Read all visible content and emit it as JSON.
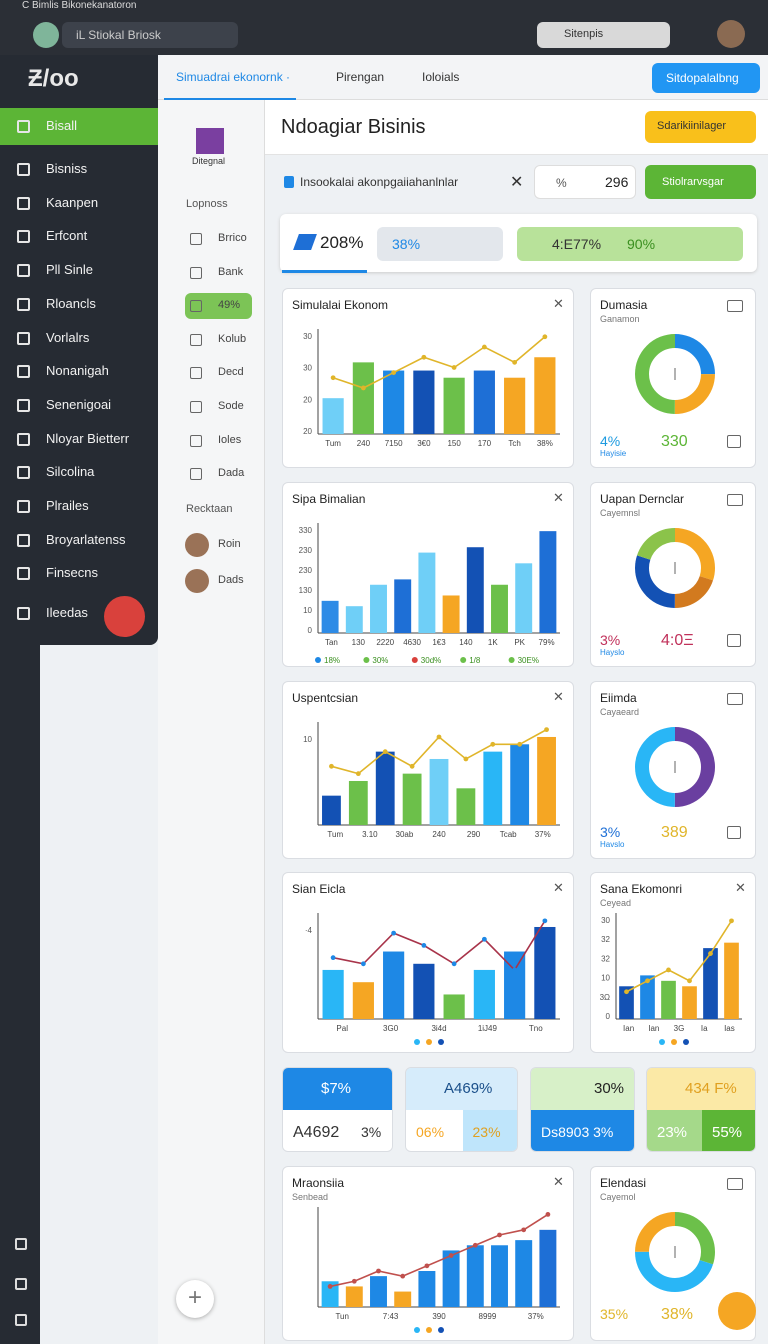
{
  "browser": {
    "tab": "C Bimlis Bikonekanatoron",
    "address": "iL Stiokal Briosk",
    "search": "Sitenpis"
  },
  "logo": "Ƶ/oo",
  "menu": [
    "Bisall",
    "Bisniss",
    "Kaanpen",
    "Erfcont",
    "Pll Sinle",
    "Rloancls",
    "Vorlalrs",
    "Nonanigah",
    "Senenigoai",
    "Nloyar Bietterr",
    "Silcolina",
    "Plrailes",
    "Broyarlatenss",
    "Finsecns",
    "Ileedas"
  ],
  "subnav": {
    "brand": "Ditegnal",
    "section": "Lopnoss",
    "items": [
      "Brrico",
      "Bank",
      "49%",
      "Kolub",
      "Decd",
      "Sode",
      "Ioles",
      "Dada"
    ],
    "section2": "Recktaan",
    "people": [
      "Roin",
      "Dads"
    ]
  },
  "tabs": [
    "Simuadrai ekonornk ·",
    "Pirengan",
    "Ioloials"
  ],
  "top_button": "Sitdopalalbng",
  "header": {
    "title": "Ndoagiar Bisinis",
    "button": "Sdarikiinilager"
  },
  "filter": {
    "text": "Insookalai akonpgaiiahanlnlar",
    "unit": "%",
    "value": "296",
    "button": "Stiolrarvsgar"
  },
  "stats": [
    "208%",
    "38%",
    "4:E77%",
    "90%"
  ],
  "charts": [
    {
      "title": "Simulalai Ekonom",
      "yticks": [
        "30",
        "30",
        "20",
        "20"
      ],
      "xlabels": [
        "Tum",
        "240",
        "7150",
        "3€0",
        "150",
        "170",
        "Tch",
        "38%"
      ],
      "bars": [
        {
          "value": 35,
          "color": "#6fcff7"
        },
        {
          "value": 70,
          "color": "#6cc04a"
        },
        {
          "value": 62,
          "color": "#1e88e5"
        },
        {
          "value": 62,
          "color": "#1351b4"
        },
        {
          "value": 55,
          "color": "#6cc04a"
        },
        {
          "value": 62,
          "color": "#1e6fd6"
        },
        {
          "value": 55,
          "color": "#f5a623"
        },
        {
          "value": 75,
          "color": "#f5a623"
        }
      ],
      "line": [
        55,
        45,
        60,
        75,
        65,
        85,
        70,
        95
      ],
      "line_color": "#e0b52a"
    },
    {
      "title": "Sipa Bimalian",
      "yticks": [
        "330",
        "230",
        "230",
        "130",
        "10",
        "0"
      ],
      "xlabels": [
        "Tan",
        "130",
        "2220",
        "4630",
        "1€3",
        "140",
        "1K",
        "PK",
        "79%"
      ],
      "bars": [
        {
          "value": 30,
          "color": "#2e8be6"
        },
        {
          "value": 25,
          "color": "#6fcff7"
        },
        {
          "value": 45,
          "color": "#6fcff7"
        },
        {
          "value": 50,
          "color": "#1e6fd6"
        },
        {
          "value": 75,
          "color": "#6fcff7"
        },
        {
          "value": 35,
          "color": "#f5a623"
        },
        {
          "value": 80,
          "color": "#1351b4"
        },
        {
          "value": 45,
          "color": "#6cc04a"
        },
        {
          "value": 65,
          "color": "#6fcff7"
        },
        {
          "value": 95,
          "color": "#1e6fd6"
        }
      ],
      "legend": [
        "18%",
        "30%",
        "30d%",
        "1/8",
        "30E%"
      ]
    },
    {
      "title": "Uspentcsian",
      "yticks": [
        "10"
      ],
      "xlabels": [
        "Tum",
        "3.10",
        "30ab",
        "240",
        "290",
        "Tcab",
        "37%"
      ],
      "bars": [
        {
          "value": 20,
          "color": "#1351b4"
        },
        {
          "value": 30,
          "color": "#6cc04a"
        },
        {
          "value": 50,
          "color": "#1351b4"
        },
        {
          "value": 35,
          "color": "#6cc04a"
        },
        {
          "value": 45,
          "color": "#6fcff7"
        },
        {
          "value": 25,
          "color": "#6cc04a"
        },
        {
          "value": 50,
          "color": "#29b6f6"
        },
        {
          "value": 55,
          "color": "#1e88e5"
        },
        {
          "value": 60,
          "color": "#f5a623"
        }
      ],
      "line": [
        40,
        35,
        50,
        40,
        60,
        45,
        55,
        55,
        65
      ],
      "line_color": "#e0b52a"
    },
    {
      "title": "Sian Eicla",
      "yticks": [
        "·4"
      ],
      "xlabels": [
        "Pal",
        "3G0",
        "3i4d",
        "1iJ49",
        "Tno"
      ],
      "bars": [
        {
          "value": 40,
          "color": "#29b6f6"
        },
        {
          "value": 30,
          "color": "#f5a623"
        },
        {
          "value": 55,
          "color": "#1e88e5"
        },
        {
          "value": 45,
          "color": "#1351b4"
        },
        {
          "value": 20,
          "color": "#6cc04a"
        },
        {
          "value": 40,
          "color": "#29b6f6"
        },
        {
          "value": 55,
          "color": "#1e88e5"
        },
        {
          "value": 75,
          "color": "#1351b4"
        }
      ],
      "line": [
        50,
        45,
        70,
        60,
        45,
        65,
        40,
        80
      ],
      "line_color": "#a8344a"
    },
    {
      "title": "Sana Ekomonri",
      "subtitle": "Ceyead",
      "yticks": [
        "30",
        "32",
        "32",
        "10",
        "3Ω",
        "0"
      ],
      "xlabels": [
        "Ian",
        "Ian",
        "3G",
        "Ia",
        "Ias"
      ],
      "bars": [
        {
          "value": 30,
          "color": "#1351b4"
        },
        {
          "value": 40,
          "color": "#1e88e5"
        },
        {
          "value": 35,
          "color": "#6cc04a"
        },
        {
          "value": 30,
          "color": "#f5a623"
        },
        {
          "value": 65,
          "color": "#1351b4"
        },
        {
          "value": 70,
          "color": "#f5a623"
        }
      ],
      "line": [
        25,
        35,
        45,
        35,
        60,
        90
      ],
      "line_color": "#e0b52a"
    },
    {
      "title": "Mraonsiia",
      "subtitle": "Senbead",
      "yticks": [],
      "xlabels": [
        "Tun",
        "7:43",
        "390",
        "8999",
        "37%"
      ],
      "bars": [
        {
          "value": 25,
          "color": "#29b6f6"
        },
        {
          "value": 20,
          "color": "#f5a623"
        },
        {
          "value": 30,
          "color": "#1e88e5"
        },
        {
          "value": 15,
          "color": "#f5a623"
        },
        {
          "value": 35,
          "color": "#1e88e5"
        },
        {
          "value": 55,
          "color": "#1e88e5"
        },
        {
          "value": 60,
          "color": "#1e88e5"
        },
        {
          "value": 60,
          "color": "#1e88e5"
        },
        {
          "value": 65,
          "color": "#1e88e5"
        },
        {
          "value": 75,
          "color": "#1e6fd6"
        }
      ],
      "line": [
        20,
        25,
        35,
        30,
        40,
        50,
        60,
        70,
        75,
        90
      ],
      "line_color": "#c0504d"
    }
  ],
  "donuts": [
    {
      "title": "Dumasia",
      "subtitle": "Ganamon",
      "left": "4%",
      "right": "330",
      "caption": "Hayisie",
      "segments": [
        {
          "value": 25,
          "color": "#1e88e5"
        },
        {
          "value": 25,
          "color": "#f5a623"
        },
        {
          "value": 50,
          "color": "#6cc04a"
        }
      ]
    },
    {
      "title": "Uapan Dernclar",
      "subtitle": "Cayemnsl",
      "left": "3%",
      "right": "4:0Ξ",
      "caption": "Hayslo",
      "segments": [
        {
          "value": 30,
          "color": "#f5a623"
        },
        {
          "value": 20,
          "color": "#d27a1f"
        },
        {
          "value": 30,
          "color": "#1351b4"
        },
        {
          "value": 20,
          "color": "#8bc34a"
        }
      ]
    },
    {
      "title": "Eiimda",
      "subtitle": "Cayaeard",
      "left": "3%",
      "right": "389",
      "caption": "Havslo",
      "segments": [
        {
          "value": 50,
          "color": "#6a3fa0"
        },
        {
          "value": 50,
          "color": "#29b6f6"
        }
      ]
    },
    {
      "title": "Elendasi",
      "subtitle": "Cayemol",
      "left": "35%",
      "right": "38%",
      "caption": "",
      "segments": [
        {
          "value": 30,
          "color": "#6cc04a"
        },
        {
          "value": 45,
          "color": "#29b6f6"
        },
        {
          "value": 25,
          "color": "#f5a623"
        }
      ]
    }
  ],
  "tiles": [
    [
      "$7%",
      "A4692",
      "3%"
    ],
    [
      "A469%",
      "06%",
      "23%"
    ],
    [
      "30%",
      "Ds8903 3%"
    ],
    [
      "434 F%",
      "23%",
      "55%"
    ]
  ]
}
